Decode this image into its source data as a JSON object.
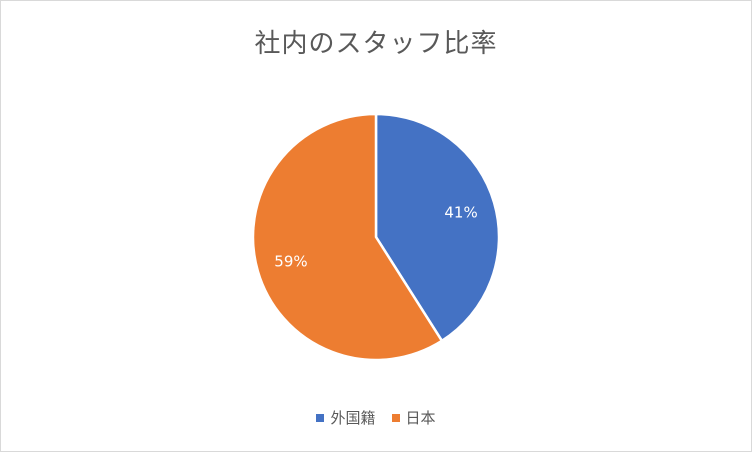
{
  "chart_data": {
    "type": "pie",
    "title": "社内のスタッフ比率",
    "categories": [
      "外国籍",
      "日本"
    ],
    "values": [
      41,
      59
    ],
    "data_labels": [
      "41%",
      "59%"
    ],
    "colors": [
      "#4472C4",
      "#ED7D31"
    ],
    "legend_position": "bottom"
  }
}
